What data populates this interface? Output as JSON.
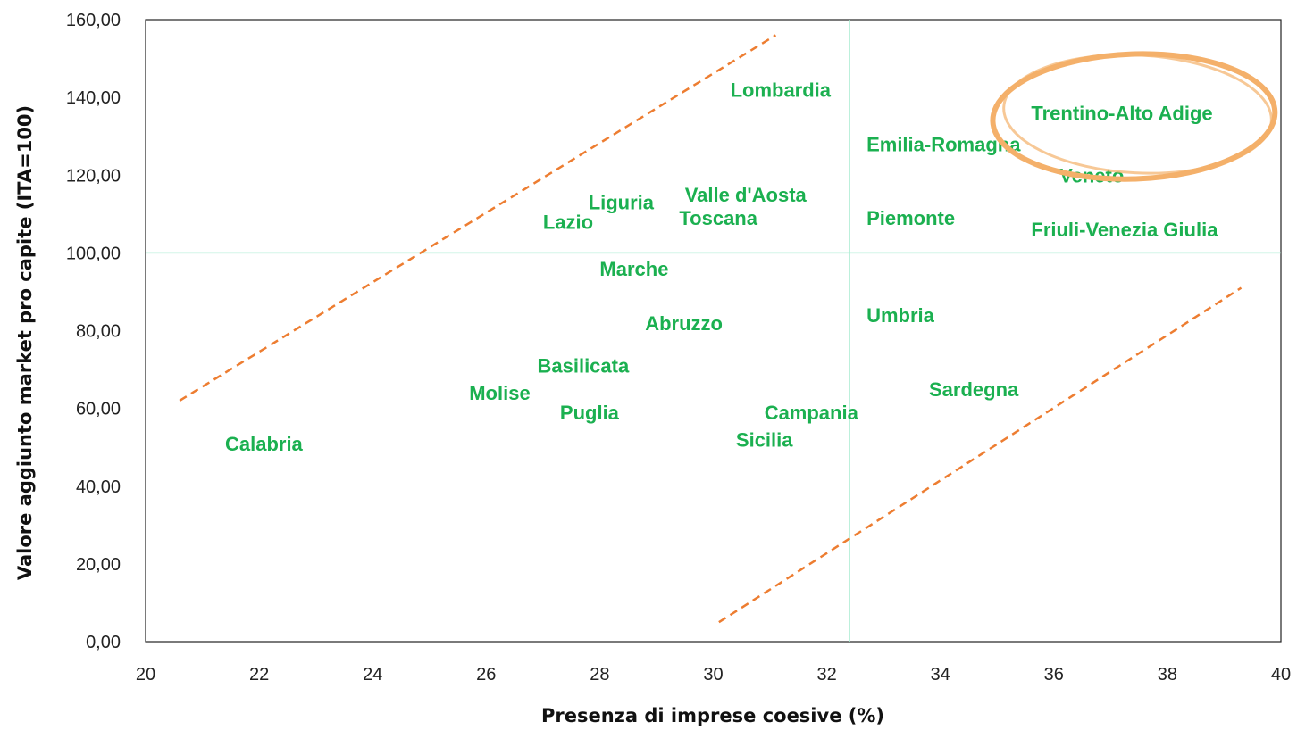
{
  "chart_data": {
    "type": "scatter",
    "xlabel": "Presenza di imprese coesive (%)",
    "ylabel": "Valore aggiunto market pro capite (ITA=100)",
    "xlim": [
      20,
      40
    ],
    "ylim": [
      0,
      160
    ],
    "x_ticks": [
      "20",
      "22",
      "24",
      "26",
      "28",
      "30",
      "32",
      "34",
      "36",
      "38",
      "40"
    ],
    "y_ticks": [
      "0,00",
      "20,00",
      "40,00",
      "60,00",
      "80,00",
      "100,00",
      "120,00",
      "140,00",
      "160,00"
    ],
    "grid": false,
    "reference_lines": {
      "x": 32.4,
      "y": 100
    },
    "trend_lines": [
      {
        "from": [
          20.6,
          62
        ],
        "to": [
          31.1,
          156
        ]
      },
      {
        "from": [
          30.1,
          5
        ],
        "to": [
          39.3,
          91
        ]
      }
    ],
    "highlight": "Trentino-Alto Adige",
    "points": [
      {
        "label": "Lombardia",
        "x": 30.3,
        "y": 142
      },
      {
        "label": "Trentino-Alto Adige",
        "x": 35.6,
        "y": 136
      },
      {
        "label": "Emilia-Romagna",
        "x": 32.7,
        "y": 128
      },
      {
        "label": "Veneto",
        "x": 36.1,
        "y": 120
      },
      {
        "label": "Valle d'Aosta",
        "x": 29.5,
        "y": 115
      },
      {
        "label": "Liguria",
        "x": 27.8,
        "y": 113
      },
      {
        "label": "Lazio",
        "x": 27.0,
        "y": 108
      },
      {
        "label": "Toscana",
        "x": 29.4,
        "y": 109
      },
      {
        "label": "Piemonte",
        "x": 32.7,
        "y": 109
      },
      {
        "label": "Friuli-Venezia Giulia",
        "x": 35.6,
        "y": 106
      },
      {
        "label": "Marche",
        "x": 28.0,
        "y": 96
      },
      {
        "label": "Umbria",
        "x": 32.7,
        "y": 84
      },
      {
        "label": "Abruzzo",
        "x": 28.8,
        "y": 82
      },
      {
        "label": "Basilicata",
        "x": 26.9,
        "y": 71
      },
      {
        "label": "Sardegna",
        "x": 33.8,
        "y": 65
      },
      {
        "label": "Molise",
        "x": 25.7,
        "y": 64
      },
      {
        "label": "Puglia",
        "x": 27.3,
        "y": 59
      },
      {
        "label": "Campania",
        "x": 30.9,
        "y": 59
      },
      {
        "label": "Sicilia",
        "x": 30.4,
        "y": 52
      },
      {
        "label": "Calabria",
        "x": 21.4,
        "y": 51
      }
    ],
    "colors": {
      "labels": "#1bb050",
      "reference": "#a8ecd0",
      "trend": "#ed7d31",
      "highlight": "#f4b06a",
      "axis": "#222222"
    }
  }
}
